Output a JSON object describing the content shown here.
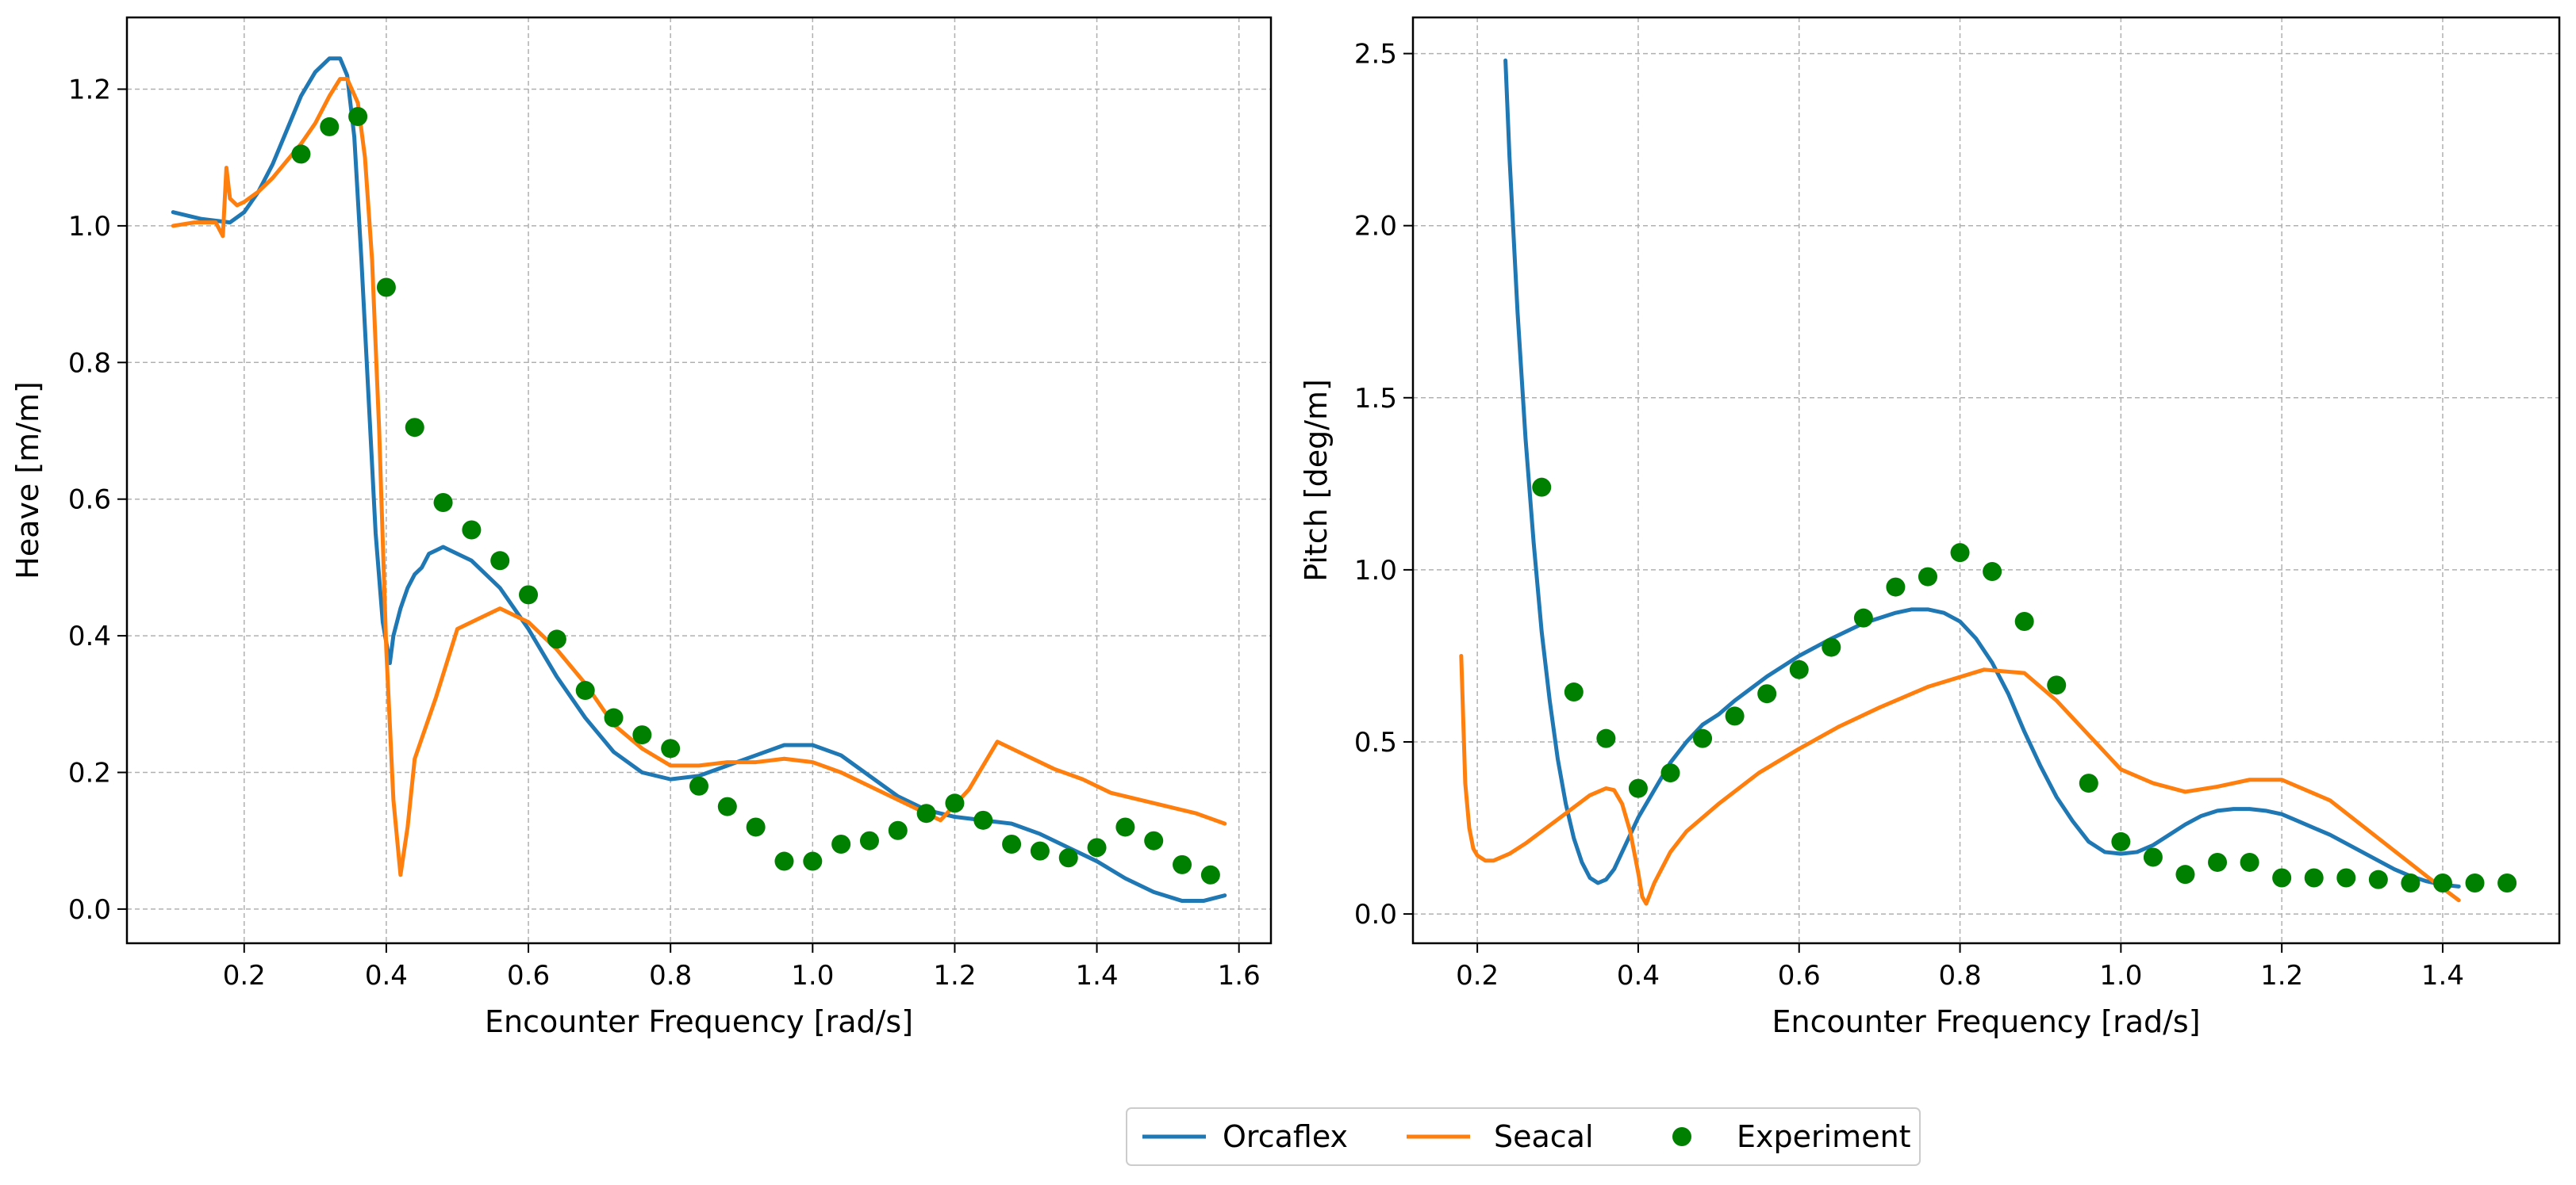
{
  "colors": {
    "orcaflex": "#1f77b4",
    "seacal": "#ff7f0e",
    "experiment": "#008000",
    "grid": "#b0b0b0",
    "axes": "#000000"
  },
  "legend": {
    "placement": "bottom-center",
    "entries": [
      "Orcaflex",
      "Seacal",
      "Experiment"
    ]
  },
  "chart_data": [
    {
      "type": "line",
      "id": "heave",
      "title": "",
      "xlabel": "Encounter Frequency [rad/s]",
      "ylabel": "Heave [m/m]",
      "xlim": [
        0.035,
        1.645
      ],
      "ylim": [
        -0.05,
        1.305
      ],
      "xticks": [
        0.2,
        0.4,
        0.6,
        0.8,
        1.0,
        1.2,
        1.4,
        1.6
      ],
      "xtick_labels": [
        "0.2",
        "0.4",
        "0.6",
        "0.8",
        "1.0",
        "1.2",
        "1.4",
        "1.6"
      ],
      "yticks": [
        0.0,
        0.2,
        0.4,
        0.6,
        0.8,
        1.0,
        1.2
      ],
      "ytick_labels": [
        "0.0",
        "0.2",
        "0.4",
        "0.6",
        "0.8",
        "1.0",
        "1.2"
      ],
      "grid": true,
      "series": [
        {
          "name": "Orcaflex",
          "kind": "line",
          "x": [
            0.1,
            0.14,
            0.18,
            0.2,
            0.22,
            0.24,
            0.26,
            0.28,
            0.3,
            0.32,
            0.335,
            0.345,
            0.355,
            0.365,
            0.375,
            0.385,
            0.395,
            0.405,
            0.41,
            0.42,
            0.43,
            0.44,
            0.45,
            0.46,
            0.47,
            0.48,
            0.49,
            0.52,
            0.56,
            0.6,
            0.64,
            0.68,
            0.72,
            0.76,
            0.8,
            0.84,
            0.88,
            0.92,
            0.96,
            1.0,
            1.04,
            1.08,
            1.12,
            1.16,
            1.2,
            1.24,
            1.28,
            1.32,
            1.36,
            1.4,
            1.44,
            1.48,
            1.52,
            1.55,
            1.58
          ],
          "y": [
            1.02,
            1.01,
            1.005,
            1.02,
            1.05,
            1.09,
            1.14,
            1.19,
            1.225,
            1.245,
            1.245,
            1.22,
            1.13,
            0.95,
            0.75,
            0.55,
            0.42,
            0.36,
            0.4,
            0.44,
            0.47,
            0.49,
            0.5,
            0.52,
            0.525,
            0.53,
            0.525,
            0.51,
            0.47,
            0.41,
            0.34,
            0.28,
            0.23,
            0.2,
            0.19,
            0.195,
            0.21,
            0.225,
            0.24,
            0.24,
            0.225,
            0.195,
            0.165,
            0.145,
            0.135,
            0.13,
            0.125,
            0.11,
            0.09,
            0.07,
            0.045,
            0.025,
            0.012,
            0.012,
            0.02
          ]
        },
        {
          "name": "Seacal",
          "kind": "line",
          "x": [
            0.1,
            0.13,
            0.16,
            0.17,
            0.175,
            0.18,
            0.19,
            0.2,
            0.22,
            0.24,
            0.26,
            0.28,
            0.3,
            0.32,
            0.335,
            0.345,
            0.36,
            0.37,
            0.38,
            0.39,
            0.4,
            0.41,
            0.42,
            0.43,
            0.44,
            0.47,
            0.5,
            0.53,
            0.56,
            0.6,
            0.64,
            0.68,
            0.72,
            0.76,
            0.8,
            0.84,
            0.88,
            0.92,
            0.96,
            1.0,
            1.04,
            1.08,
            1.12,
            1.16,
            1.18,
            1.22,
            1.26,
            1.3,
            1.34,
            1.38,
            1.42,
            1.46,
            1.5,
            1.54,
            1.58
          ],
          "y": [
            1.0,
            1.005,
            1.005,
            0.985,
            1.085,
            1.04,
            1.03,
            1.035,
            1.05,
            1.07,
            1.095,
            1.12,
            1.15,
            1.19,
            1.215,
            1.215,
            1.18,
            1.1,
            0.95,
            0.7,
            0.38,
            0.16,
            0.05,
            0.12,
            0.22,
            0.31,
            0.41,
            0.425,
            0.44,
            0.42,
            0.38,
            0.33,
            0.27,
            0.235,
            0.21,
            0.21,
            0.215,
            0.215,
            0.22,
            0.215,
            0.2,
            0.18,
            0.16,
            0.14,
            0.13,
            0.175,
            0.245,
            0.225,
            0.205,
            0.19,
            0.17,
            0.16,
            0.15,
            0.14,
            0.125
          ]
        },
        {
          "name": "Experiment",
          "kind": "scatter",
          "x": [
            0.28,
            0.32,
            0.36,
            0.4,
            0.44,
            0.48,
            0.52,
            0.56,
            0.6,
            0.64,
            0.68,
            0.72,
            0.76,
            0.8,
            0.84,
            0.88,
            0.92,
            0.96,
            1.0,
            1.04,
            1.08,
            1.12,
            1.16,
            1.2,
            1.24,
            1.28,
            1.32,
            1.36,
            1.4,
            1.44,
            1.48,
            1.52,
            1.56
          ],
          "y": [
            1.105,
            1.145,
            1.16,
            0.91,
            0.705,
            0.595,
            0.555,
            0.51,
            0.46,
            0.395,
            0.32,
            0.28,
            0.255,
            0.235,
            0.18,
            0.15,
            0.12,
            0.07,
            0.07,
            0.095,
            0.1,
            0.115,
            0.14,
            0.155,
            0.13,
            0.095,
            0.085,
            0.075,
            0.09,
            0.12,
            0.1,
            0.065,
            0.05
          ]
        }
      ]
    },
    {
      "type": "line",
      "id": "pitch",
      "title": "",
      "xlabel": "Encounter Frequency [rad/s]",
      "ylabel": "Pitch [deg/m]",
      "xlim": [
        0.12,
        1.545
      ],
      "ylim": [
        -0.085,
        2.605
      ],
      "xticks": [
        0.2,
        0.4,
        0.6,
        0.8,
        1.0,
        1.2,
        1.4
      ],
      "xtick_labels": [
        "0.2",
        "0.4",
        "0.6",
        "0.8",
        "1.0",
        "1.2",
        "1.4"
      ],
      "yticks": [
        0.0,
        0.5,
        1.0,
        1.5,
        2.0,
        2.5
      ],
      "ytick_labels": [
        "0.0",
        "0.5",
        "1.0",
        "1.5",
        "2.0",
        "2.5"
      ],
      "grid": true,
      "series": [
        {
          "name": "Orcaflex",
          "kind": "line",
          "x": [
            0.235,
            0.24,
            0.25,
            0.26,
            0.27,
            0.28,
            0.29,
            0.3,
            0.31,
            0.32,
            0.33,
            0.34,
            0.35,
            0.36,
            0.37,
            0.38,
            0.4,
            0.42,
            0.44,
            0.46,
            0.48,
            0.5,
            0.52,
            0.56,
            0.6,
            0.64,
            0.68,
            0.72,
            0.74,
            0.76,
            0.78,
            0.8,
            0.82,
            0.84,
            0.86,
            0.88,
            0.9,
            0.92,
            0.94,
            0.96,
            0.98,
            1.0,
            1.02,
            1.04,
            1.06,
            1.08,
            1.1,
            1.12,
            1.14,
            1.16,
            1.18,
            1.2,
            1.22,
            1.24,
            1.26,
            1.28,
            1.3,
            1.32,
            1.34,
            1.36,
            1.38,
            1.4,
            1.42
          ],
          "y": [
            2.48,
            2.2,
            1.75,
            1.38,
            1.08,
            0.82,
            0.62,
            0.45,
            0.32,
            0.22,
            0.15,
            0.105,
            0.09,
            0.1,
            0.13,
            0.18,
            0.28,
            0.36,
            0.44,
            0.5,
            0.55,
            0.58,
            0.62,
            0.69,
            0.75,
            0.8,
            0.845,
            0.875,
            0.885,
            0.885,
            0.875,
            0.85,
            0.8,
            0.73,
            0.64,
            0.53,
            0.43,
            0.34,
            0.27,
            0.21,
            0.18,
            0.175,
            0.18,
            0.2,
            0.23,
            0.26,
            0.285,
            0.3,
            0.305,
            0.305,
            0.3,
            0.29,
            0.27,
            0.25,
            0.23,
            0.205,
            0.18,
            0.155,
            0.13,
            0.11,
            0.095,
            0.085,
            0.08
          ]
        },
        {
          "name": "Seacal",
          "kind": "line",
          "x": [
            0.18,
            0.185,
            0.19,
            0.195,
            0.2,
            0.21,
            0.22,
            0.24,
            0.26,
            0.28,
            0.3,
            0.32,
            0.34,
            0.36,
            0.37,
            0.38,
            0.39,
            0.4,
            0.405,
            0.41,
            0.42,
            0.44,
            0.46,
            0.5,
            0.55,
            0.6,
            0.65,
            0.7,
            0.76,
            0.83,
            0.88,
            0.92,
            0.96,
            1.0,
            1.04,
            1.08,
            1.12,
            1.16,
            1.2,
            1.26,
            1.32,
            1.38,
            1.42
          ],
          "y": [
            0.75,
            0.38,
            0.25,
            0.19,
            0.17,
            0.155,
            0.155,
            0.175,
            0.205,
            0.24,
            0.275,
            0.31,
            0.345,
            0.365,
            0.36,
            0.32,
            0.24,
            0.12,
            0.05,
            0.03,
            0.09,
            0.18,
            0.24,
            0.32,
            0.41,
            0.48,
            0.545,
            0.6,
            0.66,
            0.71,
            0.7,
            0.62,
            0.52,
            0.42,
            0.38,
            0.355,
            0.37,
            0.39,
            0.39,
            0.33,
            0.22,
            0.11,
            0.04
          ]
        },
        {
          "name": "Experiment",
          "kind": "scatter",
          "x": [
            0.28,
            0.32,
            0.36,
            0.4,
            0.44,
            0.48,
            0.52,
            0.56,
            0.6,
            0.64,
            0.68,
            0.72,
            0.76,
            0.8,
            0.84,
            0.88,
            0.92,
            0.96,
            1.0,
            1.04,
            1.08,
            1.12,
            1.16,
            1.2,
            1.24,
            1.28,
            1.32,
            1.36,
            1.4,
            1.44,
            1.48
          ],
          "y": [
            1.24,
            0.645,
            0.51,
            0.365,
            0.41,
            0.51,
            0.575,
            0.64,
            0.71,
            0.775,
            0.86,
            0.95,
            0.98,
            1.05,
            0.995,
            0.85,
            0.665,
            0.38,
            0.21,
            0.165,
            0.115,
            0.15,
            0.15,
            0.105,
            0.105,
            0.105,
            0.1,
            0.09,
            0.09,
            0.09,
            0.09
          ]
        }
      ]
    }
  ]
}
